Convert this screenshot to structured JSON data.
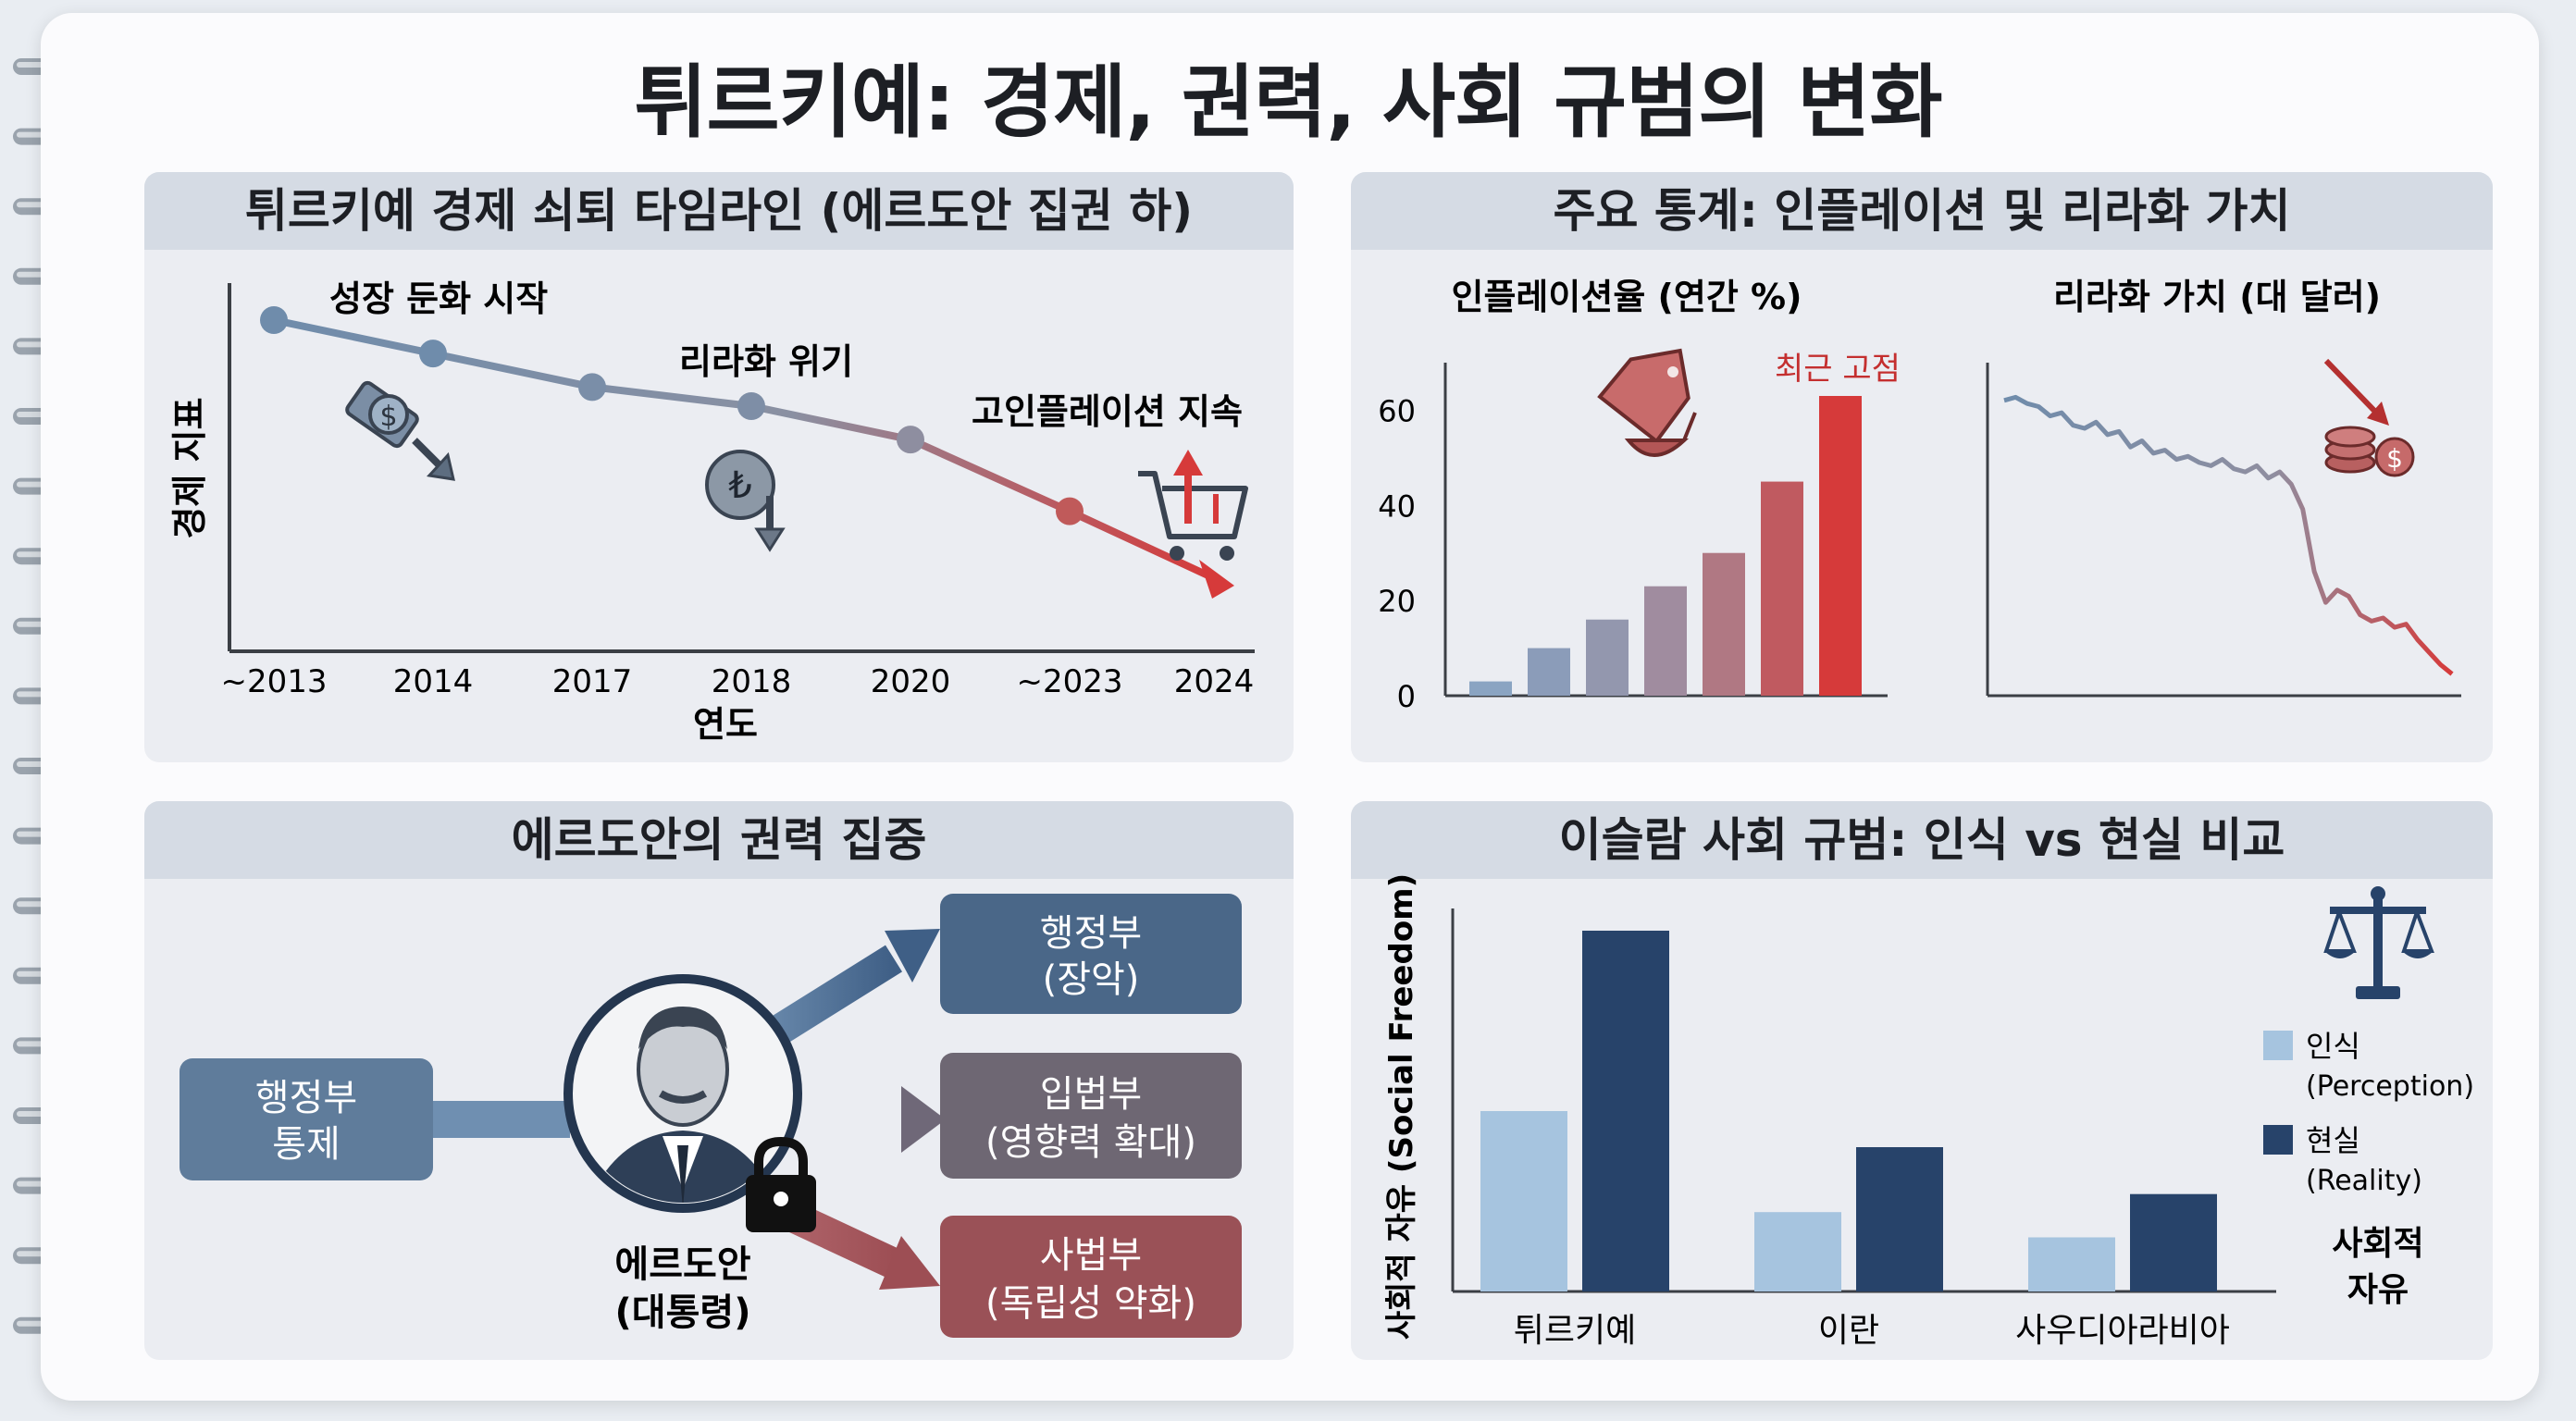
{
  "title": "튀르키예: 경제, 권력, 사회 규범의 변화",
  "colors": {
    "blue_dark": "#27436a",
    "blue_mid": "#6f8cab",
    "blue_light": "#a6c4df",
    "red": "#d63a3a",
    "gray": "#6b7076",
    "header": "#d5dbe4"
  },
  "timeline": {
    "header": "튀르키예 경제 쇠퇴 타임라인 (에르도안 집권 하)",
    "ylabel": "경제 지표",
    "xlabel": "연도",
    "years": [
      "~2013",
      "2014",
      "2017",
      "2018",
      "2020",
      "~2023",
      "2024"
    ],
    "values": [
      100,
      93,
      86,
      82,
      75,
      60,
      46
    ],
    "annotations": {
      "slowdown": "성장 둔화 시작",
      "lira_crisis": "리라화 위기",
      "inflation": "고인플레이션 지속"
    },
    "icons": [
      "money-down-icon",
      "lira-coin-down-icon",
      "shopping-cart-up-icon"
    ]
  },
  "stats": {
    "header": "주요 통계: 인플레이션 및 리라화 가치",
    "inflation_title": "인플레이션율 (연간 %)",
    "lira_title": "리라화 가치 (대 달러)",
    "record_label": "최근 고점"
  },
  "chart_data": [
    {
      "type": "bar",
      "title": "인플레이션율 (연간 %)",
      "ylim": [
        0,
        70
      ],
      "yticks": [
        0,
        20,
        40,
        60
      ],
      "values": [
        3,
        10,
        16,
        23,
        30,
        45,
        63
      ],
      "annotation": "최근 고점"
    },
    {
      "type": "line",
      "title": "리라화 가치 (대 달러)",
      "ylim": [
        0,
        100
      ],
      "values": [
        95,
        96,
        94,
        93,
        90,
        91,
        87,
        86,
        88,
        84,
        85,
        80,
        82,
        78,
        79,
        76,
        77,
        75,
        74,
        76,
        73,
        72,
        74,
        70,
        72,
        68,
        60,
        40,
        30,
        34,
        32,
        26,
        24,
        25,
        22,
        23,
        18,
        14,
        10,
        7
      ]
    },
    {
      "type": "bar",
      "title": "이슬람 사회 규범: 인식 vs 현실 비교",
      "ylabel": "사회적 자유 (Social Freedom)",
      "categories": [
        "튀르키예",
        "이란",
        "사우디아라비아"
      ],
      "series": [
        {
          "name": "인식 (Perception)",
          "values": [
            50,
            22,
            15
          ]
        },
        {
          "name": "현실 (Reality)",
          "values": [
            100,
            40,
            27
          ]
        }
      ]
    }
  ],
  "power": {
    "header": "에르도안의 권력 집중",
    "center_line1": "에르도안",
    "center_line2": "(대통령)",
    "left_line1": "행정부",
    "left_line2": "통제",
    "exec_line1": "행정부",
    "exec_line2": "(장악)",
    "leg_line1": "입법부",
    "leg_line2": "(영향력 확대)",
    "jud_line1": "사법부",
    "jud_line2": "(독립성 약화)",
    "icons": [
      "portrait-icon",
      "lock-icon"
    ]
  },
  "norms": {
    "header": "이슬람 사회 규범: 인식 vs 현실 비교",
    "ylabel": "사회적 자유 (Social Freedom)",
    "legend_perception_1": "인식",
    "legend_perception_2": "(Perception)",
    "legend_reality_1": "현실",
    "legend_reality_2": "(Reality)",
    "freedom_label_1": "사회적",
    "freedom_label_2": "자유",
    "icons": [
      "scales-icon"
    ]
  }
}
